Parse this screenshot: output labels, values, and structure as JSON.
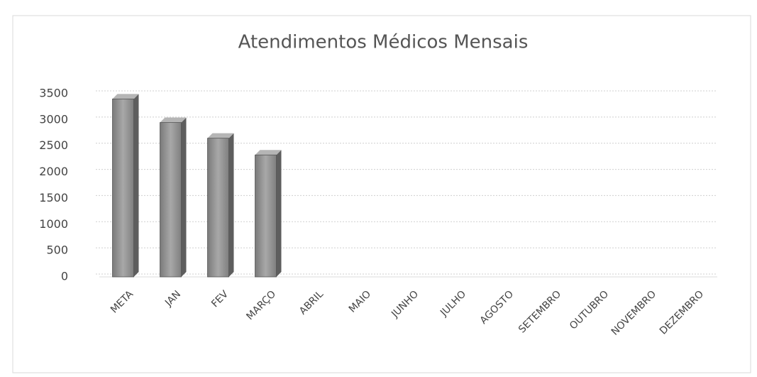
{
  "chart_data": {
    "type": "bar",
    "title": "Atendimentos Médicos Mensais",
    "categories": [
      "META",
      "JAN",
      "FEV",
      "MARÇO",
      "ABRIL",
      "MAIO",
      "JUNHO",
      "JULHO",
      "AGOSTO",
      "SETEMBRO",
      "OUTUBRO",
      "NOVEMBRO",
      "DEZEMBRO"
    ],
    "values": [
      3400,
      2950,
      2650,
      2330,
      null,
      null,
      null,
      null,
      null,
      null,
      null,
      null,
      null
    ],
    "color": "#8c8c8c",
    "ylim": [
      0,
      3500
    ],
    "yticks": [
      0,
      500,
      1000,
      1500,
      2000,
      2500,
      3000,
      3500
    ],
    "grid": true
  }
}
